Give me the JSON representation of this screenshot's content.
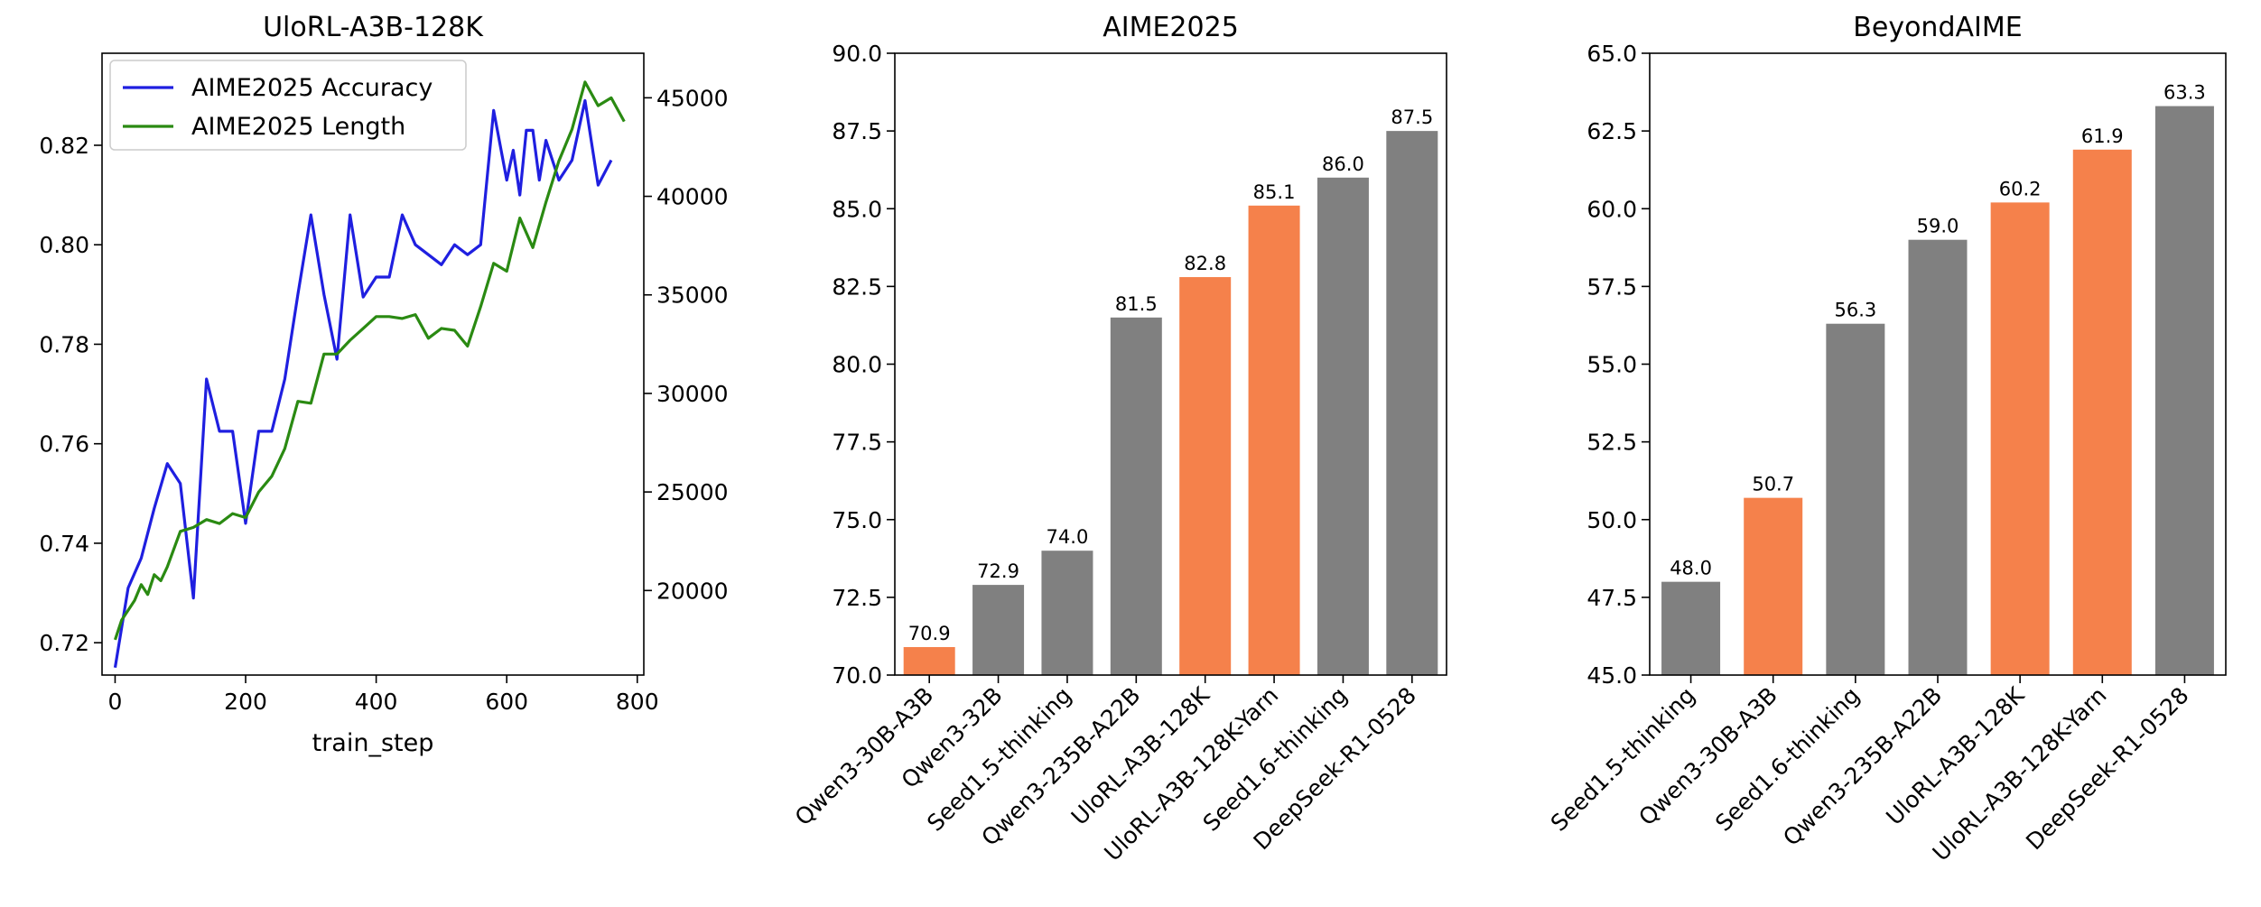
{
  "chart_data": [
    {
      "type": "line",
      "title": "UloRL-A3B-128K",
      "xlabel": "train_step",
      "ylabel": "",
      "xlim": [
        -20,
        810
      ],
      "x_ticks": [
        "0",
        "200",
        "400",
        "600",
        "800"
      ],
      "x_tick_values": [
        0,
        200,
        400,
        600,
        800
      ],
      "ylim_left": [
        0.7135,
        0.8385
      ],
      "y_ticks_left": [
        "0.72",
        "0.74",
        "0.76",
        "0.78",
        "0.80",
        "0.82"
      ],
      "y_tick_values_left": [
        0.72,
        0.74,
        0.76,
        0.78,
        0.8,
        0.82
      ],
      "ylim_right": [
        15710,
        47260
      ],
      "y_ticks_right": [
        "20000",
        "25000",
        "30000",
        "35000",
        "40000",
        "45000"
      ],
      "y_tick_values_right": [
        20000,
        25000,
        30000,
        35000,
        40000,
        45000
      ],
      "legend_position": "top-left",
      "series": [
        {
          "name": "AIME2025 Accuracy",
          "axis": "left",
          "color": "#1f1fe0",
          "x": [
            0,
            20,
            40,
            60,
            80,
            100,
            120,
            140,
            160,
            180,
            200,
            220,
            240,
            260,
            280,
            300,
            320,
            340,
            360,
            380,
            400,
            420,
            440,
            460,
            480,
            500,
            520,
            540,
            560,
            580,
            600,
            610,
            620,
            630,
            640,
            650,
            660,
            680,
            700,
            720,
            740,
            760
          ],
          "y": [
            0.715,
            0.731,
            0.737,
            0.747,
            0.756,
            0.752,
            0.729,
            0.773,
            0.7625,
            0.7625,
            0.744,
            0.7625,
            0.7625,
            0.773,
            0.79,
            0.806,
            0.79,
            0.777,
            0.806,
            0.7895,
            0.7935,
            0.7935,
            0.806,
            0.8,
            0.798,
            0.796,
            0.8,
            0.798,
            0.8,
            0.827,
            0.813,
            0.819,
            0.81,
            0.823,
            0.823,
            0.813,
            0.821,
            0.813,
            0.817,
            0.829,
            0.812,
            0.817
          ]
        },
        {
          "name": "AIME2025 Length",
          "axis": "right",
          "color": "#2a8a12",
          "x": [
            0,
            10,
            20,
            30,
            40,
            50,
            60,
            70,
            80,
            100,
            120,
            140,
            160,
            180,
            200,
            220,
            240,
            260,
            280,
            300,
            320,
            340,
            360,
            380,
            400,
            420,
            440,
            460,
            480,
            500,
            520,
            540,
            560,
            580,
            600,
            620,
            640,
            660,
            680,
            700,
            720,
            740,
            760,
            780
          ],
          "y": [
            17500,
            18500,
            19000,
            19500,
            20300,
            19800,
            20800,
            20500,
            21200,
            23000,
            23200,
            23600,
            23400,
            23900,
            23700,
            25000,
            25800,
            27200,
            29600,
            29500,
            32000,
            32000,
            32700,
            33300,
            33900,
            33900,
            33800,
            34000,
            32800,
            33300,
            33200,
            32400,
            34400,
            36600,
            36200,
            38900,
            37400,
            39700,
            41800,
            43400,
            45800,
            44600,
            45000,
            43800
          ]
        }
      ]
    },
    {
      "type": "bar",
      "title": "AIME2025",
      "xlabel": "",
      "ylabel": "",
      "ylim": [
        70.0,
        90.0
      ],
      "y_ticks": [
        "70.0",
        "72.5",
        "75.0",
        "77.5",
        "80.0",
        "82.5",
        "85.0",
        "87.5",
        "90.0"
      ],
      "y_tick_values": [
        70.0,
        72.5,
        75.0,
        77.5,
        80.0,
        82.5,
        85.0,
        87.5,
        90.0
      ],
      "categories": [
        "Qwen3-30B-A3B",
        "Qwen3-32B",
        "Seed1.5-thinking",
        "Qwen3-235B-A22B",
        "UloRL-A3B-128K",
        "UloRL-A3B-128K-Yarn",
        "Seed1.6-thinking",
        "DeepSeek-R1-0528"
      ],
      "values": [
        70.9,
        72.9,
        74.0,
        81.5,
        82.8,
        85.1,
        86.0,
        87.5
      ],
      "value_labels": [
        "70.9",
        "72.9",
        "74.0",
        "81.5",
        "82.8",
        "85.1",
        "86.0",
        "87.5"
      ],
      "colors": [
        "#f5814b",
        "#808080",
        "#808080",
        "#808080",
        "#f5814b",
        "#f5814b",
        "#808080",
        "#808080"
      ]
    },
    {
      "type": "bar",
      "title": "BeyondAIME",
      "xlabel": "",
      "ylabel": "",
      "ylim": [
        45.0,
        65.0
      ],
      "y_ticks": [
        "45.0",
        "47.5",
        "50.0",
        "52.5",
        "55.0",
        "57.5",
        "60.0",
        "62.5",
        "65.0"
      ],
      "y_tick_values": [
        45.0,
        47.5,
        50.0,
        52.5,
        55.0,
        57.5,
        60.0,
        62.5,
        65.0
      ],
      "categories": [
        "Seed1.5-thinking",
        "Qwen3-30B-A3B",
        "Seed1.6-thinking",
        "Qwen3-235B-A22B",
        "UloRL-A3B-128K",
        "UloRL-A3B-128K-Yarn",
        "DeepSeek-R1-0528"
      ],
      "values": [
        48.0,
        50.7,
        56.3,
        59.0,
        60.2,
        61.9,
        63.3
      ],
      "value_labels": [
        "48.0",
        "50.7",
        "56.3",
        "59.0",
        "60.2",
        "61.9",
        "63.3"
      ],
      "colors": [
        "#808080",
        "#f5814b",
        "#808080",
        "#808080",
        "#f5814b",
        "#f5814b",
        "#808080"
      ]
    }
  ]
}
